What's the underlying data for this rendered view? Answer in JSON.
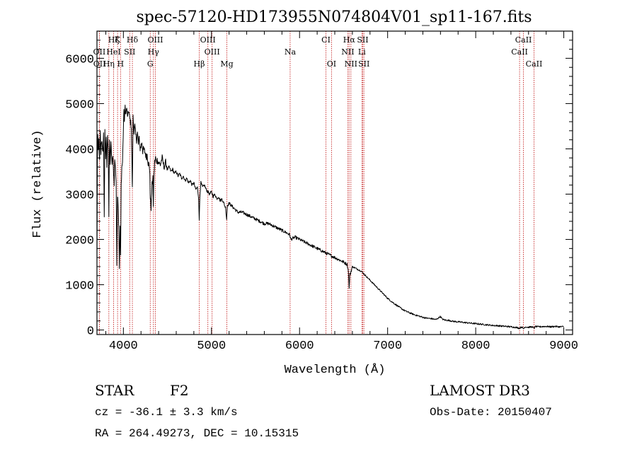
{
  "chart_data": {
    "type": "line",
    "title": "spec-57120-HD173955N074804V01_sp11-167.fits",
    "xlabel": "Wavelength (Å)",
    "ylabel": "Flux (relative)",
    "xlim": [
      3700,
      9100
    ],
    "ylim": [
      -100,
      6600
    ],
    "x_ticks": [
      4000,
      5000,
      6000,
      7000,
      8000,
      9000
    ],
    "y_ticks": [
      0,
      1000,
      2000,
      3000,
      4000,
      5000,
      6000
    ],
    "series": [
      {
        "name": "flux",
        "x": [
          3700,
          3705,
          3710,
          3715,
          3722,
          3730,
          3737,
          3745,
          3752,
          3760,
          3768,
          3775,
          3783,
          3790,
          3798,
          3805,
          3812,
          3820,
          3828,
          3835,
          3842,
          3850,
          3858,
          3865,
          3872,
          3880,
          3888,
          3895,
          3902,
          3910,
          3918,
          3925,
          3933,
          3940,
          3948,
          3955,
          3962,
          3968,
          3975,
          3982,
          3990,
          3998,
          4005,
          4012,
          4020,
          4028,
          4035,
          4042,
          4050,
          4060,
          4070,
          4080,
          4090,
          4100,
          4102,
          4110,
          4120,
          4130,
          4140,
          4150,
          4160,
          4170,
          4180,
          4190,
          4200,
          4210,
          4220,
          4230,
          4240,
          4250,
          4260,
          4270,
          4280,
          4290,
          4300,
          4305,
          4315,
          4325,
          4335,
          4340,
          4345,
          4355,
          4365,
          4375,
          4385,
          4400,
          4420,
          4440,
          4460,
          4480,
          4500,
          4520,
          4540,
          4560,
          4580,
          4600,
          4620,
          4640,
          4660,
          4680,
          4700,
          4720,
          4740,
          4760,
          4780,
          4800,
          4820,
          4840,
          4855,
          4861,
          4868,
          4880,
          4900,
          4920,
          4940,
          4960,
          4980,
          5000,
          5020,
          5040,
          5060,
          5080,
          5100,
          5120,
          5140,
          5160,
          5172,
          5180,
          5200,
          5250,
          5300,
          5350,
          5400,
          5450,
          5500,
          5550,
          5600,
          5650,
          5700,
          5750,
          5800,
          5850,
          5890,
          5900,
          5950,
          6000,
          6050,
          6100,
          6150,
          6200,
          6250,
          6300,
          6350,
          6400,
          6450,
          6500,
          6540,
          6555,
          6563,
          6570,
          6600,
          6650,
          6700,
          6750,
          6800,
          6850,
          6900,
          6950,
          7000,
          7050,
          7100,
          7150,
          7200,
          7250,
          7300,
          7350,
          7400,
          7450,
          7500,
          7550,
          7600,
          7620,
          7650,
          7700,
          7750,
          7800,
          7850,
          7900,
          7950,
          8000,
          8050,
          8100,
          8150,
          8200,
          8250,
          8300,
          8350,
          8400,
          8450,
          8498,
          8520,
          8542,
          8560,
          8600,
          8640,
          8662,
          8680,
          8700,
          8750,
          8800,
          8850,
          8900,
          8950,
          9000
        ],
        "y": [
          1500,
          3800,
          4300,
          3900,
          4200,
          3700,
          4350,
          3900,
          4200,
          4100,
          3900,
          4300,
          2500,
          4450,
          3800,
          4200,
          3600,
          4350,
          4000,
          2500,
          4200,
          3700,
          4100,
          3900,
          3600,
          3900,
          3500,
          3200,
          3800,
          3600,
          3200,
          1500,
          3000,
          2800,
          2200,
          1400,
          2300,
          1600,
          3200,
          3600,
          3700,
          4300,
          4800,
          4600,
          4950,
          4750,
          4900,
          4800,
          4700,
          4850,
          4700,
          4600,
          4500,
          3300,
          3100,
          4700,
          4400,
          4500,
          4300,
          4200,
          4350,
          4100,
          4250,
          4000,
          4050,
          4150,
          3950,
          4000,
          3950,
          3900,
          3800,
          3900,
          3700,
          3650,
          3500,
          2900,
          2700,
          3200,
          3400,
          2650,
          3300,
          3700,
          3800,
          3700,
          3750,
          3700,
          3650,
          3800,
          3600,
          3700,
          3550,
          3600,
          3500,
          3550,
          3450,
          3500,
          3400,
          3450,
          3350,
          3400,
          3300,
          3350,
          3250,
          3300,
          3200,
          3250,
          3100,
          3150,
          2900,
          2400,
          2950,
          3250,
          3150,
          3200,
          3100,
          3050,
          3000,
          3050,
          2950,
          3000,
          2900,
          2950,
          2850,
          2900,
          2800,
          2700,
          2450,
          2750,
          2800,
          2700,
          2600,
          2600,
          2550,
          2500,
          2450,
          2400,
          2350,
          2350,
          2300,
          2250,
          2200,
          2150,
          2100,
          2000,
          2050,
          2000,
          1950,
          1900,
          1850,
          1800,
          1750,
          1700,
          1650,
          1600,
          1550,
          1500,
          1450,
          1300,
          900,
          1200,
          1400,
          1350,
          1300,
          1200,
          1100,
          1000,
          900,
          800,
          700,
          620,
          550,
          480,
          420,
          380,
          340,
          310,
          280,
          260,
          250,
          230,
          300,
          240,
          220,
          210,
          190,
          180,
          170,
          160,
          150,
          140,
          130,
          120,
          110,
          100,
          95,
          85,
          80,
          70,
          60,
          40,
          70,
          30,
          70,
          60,
          70,
          40,
          80,
          70,
          75,
          80,
          70,
          80,
          70,
          75
        ]
      }
    ],
    "spectral_lines": [
      {
        "label": "Hζ",
        "x": 3889,
        "row": 0
      },
      {
        "label": "K",
        "x": 3934,
        "row": 0
      },
      {
        "label": "Hδ",
        "x": 4102,
        "row": 0
      },
      {
        "label": "OIII",
        "x": 4363,
        "row": 0
      },
      {
        "label": "OIII",
        "x": 4959,
        "row": 0
      },
      {
        "label": "CI",
        "x": 6300,
        "row": 0
      },
      {
        "label": "Hα",
        "x": 6563,
        "row": 0
      },
      {
        "label": "SII",
        "x": 6717,
        "row": 0
      },
      {
        "label": "CaII",
        "x": 8542,
        "row": 0
      },
      {
        "label": "OII",
        "x": 3727,
        "row": 1
      },
      {
        "label": "HeI",
        "x": 3889,
        "row": 1
      },
      {
        "label": "SII",
        "x": 4072,
        "row": 1
      },
      {
        "label": "Hγ",
        "x": 4341,
        "row": 1
      },
      {
        "label": "OIII",
        "x": 5007,
        "row": 1
      },
      {
        "label": "Na",
        "x": 5893,
        "row": 1
      },
      {
        "label": "NII",
        "x": 6548,
        "row": 1
      },
      {
        "label": "Li",
        "x": 6708,
        "row": 1
      },
      {
        "label": "CaII",
        "x": 8498,
        "row": 1
      },
      {
        "label": "OII",
        "x": 3729,
        "row": 2
      },
      {
        "label": "Hη",
        "x": 3835,
        "row": 2
      },
      {
        "label": "H",
        "x": 3968,
        "row": 2
      },
      {
        "label": "G",
        "x": 4305,
        "row": 2
      },
      {
        "label": "Hβ",
        "x": 4861,
        "row": 2
      },
      {
        "label": "Mg",
        "x": 5175,
        "row": 2
      },
      {
        "label": "OI",
        "x": 6363,
        "row": 2
      },
      {
        "label": "NII",
        "x": 6583,
        "row": 2
      },
      {
        "label": "SII",
        "x": 6731,
        "row": 2
      },
      {
        "label": "CaII",
        "x": 8662,
        "row": 2
      }
    ]
  },
  "info": {
    "object_class": "STAR",
    "subclass": "F2",
    "survey": "LAMOST DR3",
    "redshift": "cz = -36.1 ± 3.3 km/s",
    "obs_date": "Obs-Date: 20150407",
    "coordinates": "RA = 264.49273, DEC =  10.15315"
  },
  "colors": {
    "line_marker": "#c62828",
    "spectrum": "#000000",
    "axes": "#000000"
  }
}
